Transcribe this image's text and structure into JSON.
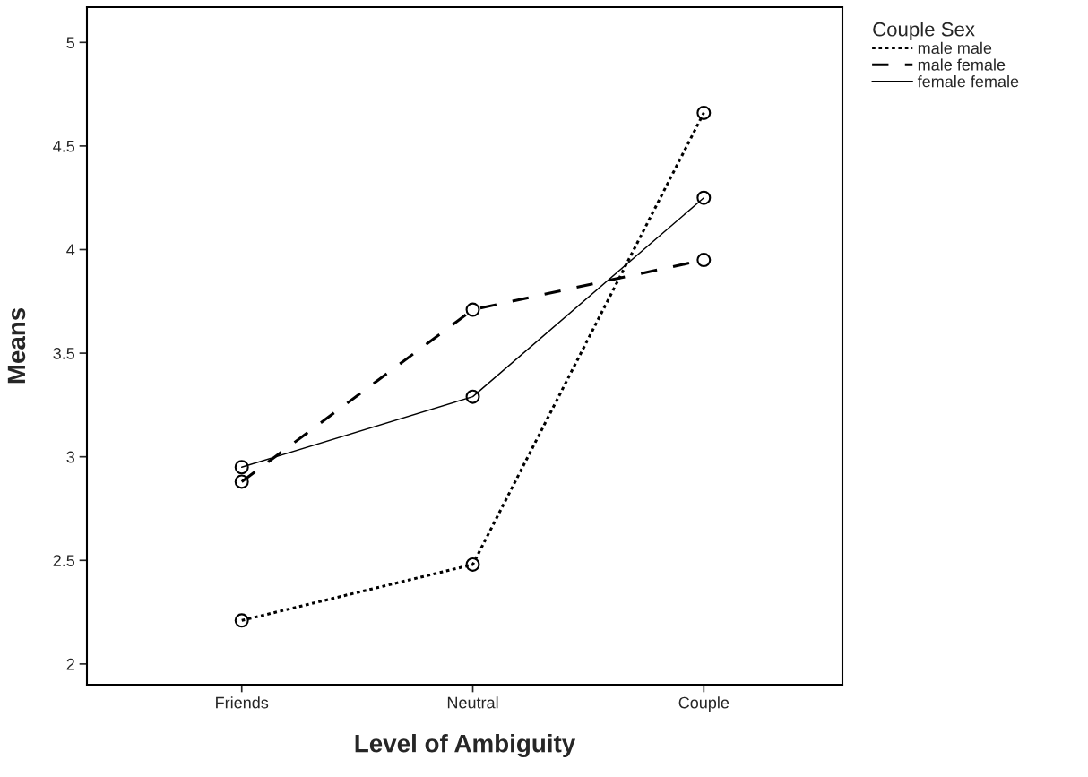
{
  "chart_data": {
    "type": "line",
    "xlabel": "Level of Ambiguity",
    "ylabel": "Means",
    "legend_title": "Couple Sex",
    "categories": [
      "Friends",
      "Neutral",
      "Couple"
    ],
    "series": [
      {
        "name": "male male",
        "color": "#000000",
        "line_style": "dotted",
        "values": [
          2.21,
          2.48,
          4.66
        ]
      },
      {
        "name": "male female",
        "color": "#000000",
        "line_style": "dashed",
        "values": [
          2.88,
          3.71,
          3.95
        ]
      },
      {
        "name": "female female",
        "color": "#000000",
        "line_style": "solid",
        "values": [
          2.95,
          3.29,
          4.25
        ]
      }
    ],
    "marker": "circle",
    "ylim": [
      1.9,
      5.17
    ],
    "yticks": [
      2,
      2.5,
      3,
      3.5,
      4,
      4.5,
      5
    ],
    "grid": false,
    "legend": "top right"
  }
}
